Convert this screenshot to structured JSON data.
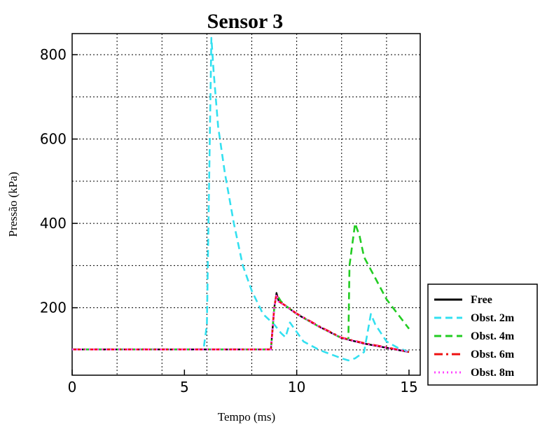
{
  "chart_data": {
    "type": "line",
    "title": "Sensor 3",
    "xlabel": "Tempo (ms)",
    "ylabel": "Pressão (kPa)",
    "xlim": [
      0,
      15.5
    ],
    "ylim": [
      40,
      850
    ],
    "xticks": [
      0,
      5,
      10,
      15
    ],
    "yticks": [
      200,
      400,
      600,
      800
    ],
    "xgrid": [
      2,
      4,
      6,
      8,
      10,
      12,
      14
    ],
    "ygrid": [
      100,
      200,
      300,
      400,
      500,
      600,
      700,
      800
    ],
    "grid": true,
    "legend_position": "bottom-right",
    "series": [
      {
        "name": "Free",
        "color": "#000000",
        "dash": "solid",
        "points": [
          [
            0,
            101
          ],
          [
            8.85,
            101
          ],
          [
            9.0,
            200
          ],
          [
            9.1,
            235
          ],
          [
            9.2,
            215
          ],
          [
            9.5,
            205
          ],
          [
            10,
            185
          ],
          [
            11,
            155
          ],
          [
            12,
            128
          ],
          [
            13,
            115
          ],
          [
            14,
            105
          ],
          [
            15,
            95
          ]
        ]
      },
      {
        "name": "Obst. 2m",
        "color": "#33e0f0",
        "dash": "dashed",
        "points": [
          [
            0,
            101
          ],
          [
            5.85,
            101
          ],
          [
            6.0,
            160
          ],
          [
            6.1,
            500
          ],
          [
            6.2,
            840
          ],
          [
            6.3,
            760
          ],
          [
            6.5,
            630
          ],
          [
            6.8,
            520
          ],
          [
            7.2,
            400
          ],
          [
            7.6,
            300
          ],
          [
            8.0,
            240
          ],
          [
            8.5,
            185
          ],
          [
            9.0,
            160
          ],
          [
            9.3,
            140
          ],
          [
            9.5,
            130
          ],
          [
            9.7,
            165
          ],
          [
            9.9,
            150
          ],
          [
            10.3,
            120
          ],
          [
            11,
            100
          ],
          [
            11.5,
            90
          ],
          [
            12,
            80
          ],
          [
            12.3,
            75
          ],
          [
            12.6,
            80
          ],
          [
            13.0,
            95
          ],
          [
            13.3,
            185
          ],
          [
            13.5,
            160
          ],
          [
            14,
            120
          ],
          [
            14.5,
            105
          ],
          [
            15,
            95
          ]
        ]
      },
      {
        "name": "Obst. 4m",
        "color": "#22cc22",
        "dash": "dashed",
        "points": [
          [
            0,
            101
          ],
          [
            8.85,
            101
          ],
          [
            9.0,
            200
          ],
          [
            9.1,
            232
          ],
          [
            9.3,
            215
          ],
          [
            9.5,
            205
          ],
          [
            10,
            185
          ],
          [
            11,
            155
          ],
          [
            12,
            128
          ],
          [
            12.3,
            125
          ],
          [
            12.35,
            300
          ],
          [
            12.6,
            400
          ],
          [
            12.8,
            370
          ],
          [
            13.0,
            320
          ],
          [
            13.5,
            270
          ],
          [
            14,
            220
          ],
          [
            14.5,
            185
          ],
          [
            15,
            150
          ]
        ]
      },
      {
        "name": "Obst. 6m",
        "color": "#ee1111",
        "dash": "dashdot",
        "points": [
          [
            0,
            101
          ],
          [
            8.85,
            101
          ],
          [
            9.0,
            200
          ],
          [
            9.1,
            233
          ],
          [
            9.2,
            215
          ],
          [
            9.5,
            205
          ],
          [
            10,
            186
          ],
          [
            11,
            156
          ],
          [
            12,
            129
          ],
          [
            13,
            116
          ],
          [
            14,
            106
          ],
          [
            15,
            95
          ]
        ]
      },
      {
        "name": "Obst. 8m",
        "color": "#ff44ff",
        "dash": "dotted",
        "points": [
          [
            0,
            101
          ],
          [
            8.85,
            101
          ],
          [
            9.0,
            200
          ],
          [
            9.1,
            231
          ],
          [
            9.2,
            214
          ],
          [
            9.5,
            204
          ],
          [
            10,
            185
          ],
          [
            11,
            155
          ],
          [
            12,
            128
          ],
          [
            13,
            115
          ],
          [
            14,
            105
          ],
          [
            15,
            95
          ]
        ]
      }
    ]
  }
}
